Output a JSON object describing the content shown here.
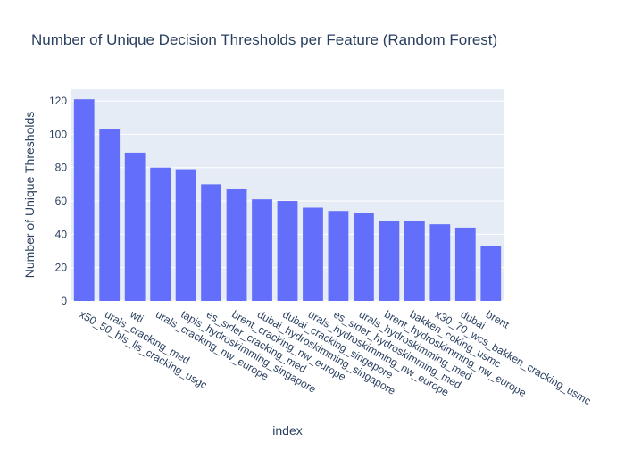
{
  "chart_data": {
    "type": "bar",
    "title": "Number of Unique Decision Thresholds per Feature (Random Forest)",
    "xlabel": "index",
    "ylabel": "Number of Unique Thresholds",
    "categories": [
      "x50_50_hls_lls_cracking_usgc",
      "urals_cracking_med",
      "wti",
      "urals_cracking_nw_europe",
      "tapis_hydroskimming_singapore",
      "es_sider_cracking_med",
      "brent_cracking_nw_europe",
      "dubai_hydroskimming_singapore",
      "dubai_cracking_singapore",
      "urals_hydroskimming_nw_europe",
      "es_sider_hydroskimming_med",
      "urals_hydroskimming_med",
      "brent_hydroskimming_nw_europe",
      "bakken_coking_usmc",
      "x30_70_wcs_bakken_cracking_usmc",
      "dubai",
      "brent"
    ],
    "values": [
      121,
      103,
      89,
      80,
      79,
      70,
      67,
      61,
      60,
      56,
      54,
      53,
      48,
      48,
      46,
      44,
      33
    ],
    "ylim": [
      0,
      127
    ],
    "yticks": [
      "0",
      "20",
      "40",
      "60",
      "80",
      "100",
      "120"
    ],
    "grid": true,
    "bar_color": "#636efa",
    "plot_background": "#e5ecf6",
    "gridline_color": "#ffffff",
    "text_color": "#2a3f5f"
  }
}
